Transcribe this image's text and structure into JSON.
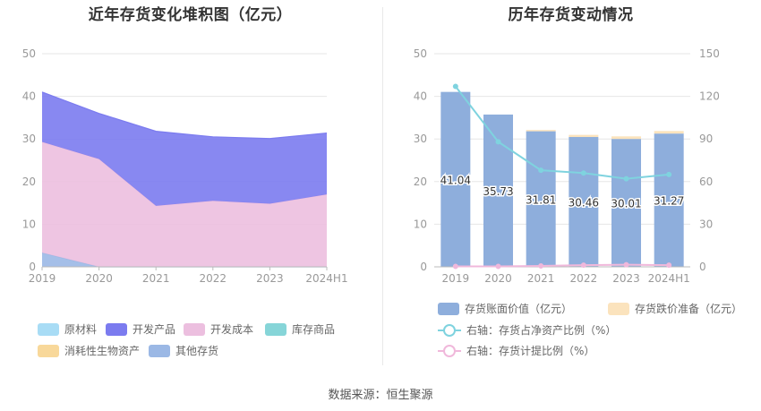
{
  "source": "数据来源：恒生聚源",
  "chart_data": [
    {
      "type": "area",
      "stacked": true,
      "title": "近年存货变化堆积图（亿元）",
      "categories": [
        "2019",
        "2020",
        "2021",
        "2022",
        "2023",
        "2024H1"
      ],
      "ylim": [
        0,
        50
      ],
      "yticks": [
        "0",
        "10",
        "20",
        "30",
        "40",
        "50"
      ],
      "grid": true,
      "legend_position": "bottom",
      "series": [
        {
          "name": "原材料",
          "color": "#a8dcf5",
          "values": [
            0,
            0,
            0,
            0,
            0,
            0
          ]
        },
        {
          "name": "开发产品",
          "color": "#7b7bef",
          "values": [
            11.7,
            10.7,
            17.5,
            15.0,
            15.3,
            14.4
          ]
        },
        {
          "name": "开发成本",
          "color": "#ecbfdf",
          "values": [
            26.0,
            25.3,
            14.3,
            15.5,
            14.8,
            17.0
          ]
        },
        {
          "name": "库存商品",
          "color": "#86d5d8",
          "values": [
            0,
            0,
            0,
            0,
            0,
            0
          ]
        },
        {
          "name": "消耗性生物资产",
          "color": "#f8d89a",
          "values": [
            0,
            0,
            0,
            0,
            0,
            0
          ]
        },
        {
          "name": "其他存货",
          "color": "#9bb8e5",
          "values": [
            3.3,
            0,
            0,
            0,
            0,
            0
          ]
        }
      ]
    },
    {
      "type": "bar",
      "title": "历年存货变动情况",
      "categories": [
        "2019",
        "2020",
        "2021",
        "2022",
        "2023",
        "2024H1"
      ],
      "ylim": [
        0,
        50
      ],
      "yticks": [
        "0",
        "10",
        "20",
        "30",
        "40",
        "50"
      ],
      "y2lim": [
        0,
        150
      ],
      "y2ticks": [
        "0",
        "30",
        "60",
        "90",
        "120",
        "150"
      ],
      "grid": true,
      "legend_position": "bottom",
      "bar_series": [
        {
          "name": "存货账面价值（亿元）",
          "color": "#8eaedc",
          "values": [
            41.04,
            35.73,
            31.81,
            30.46,
            30.01,
            31.27
          ],
          "labels": [
            "41.04",
            "35.73",
            "31.81",
            "30.46",
            "30.01",
            "31.27"
          ]
        },
        {
          "name": "存货跌价准备（亿元）",
          "color": "#fbe3bd",
          "values": [
            0,
            0,
            0.3,
            0.5,
            0.6,
            0.6
          ]
        }
      ],
      "line_series": [
        {
          "name": "右轴：存货占净资产比例（%）",
          "color": "#7fd3df",
          "axis": "right",
          "values": [
            127,
            88,
            68,
            66,
            62,
            65
          ]
        },
        {
          "name": "右轴：存货计提比例（%）",
          "color": "#f0b8db",
          "axis": "right",
          "values": [
            0.3,
            0.3,
            0.6,
            1.2,
            1.5,
            1.2
          ]
        }
      ]
    }
  ]
}
